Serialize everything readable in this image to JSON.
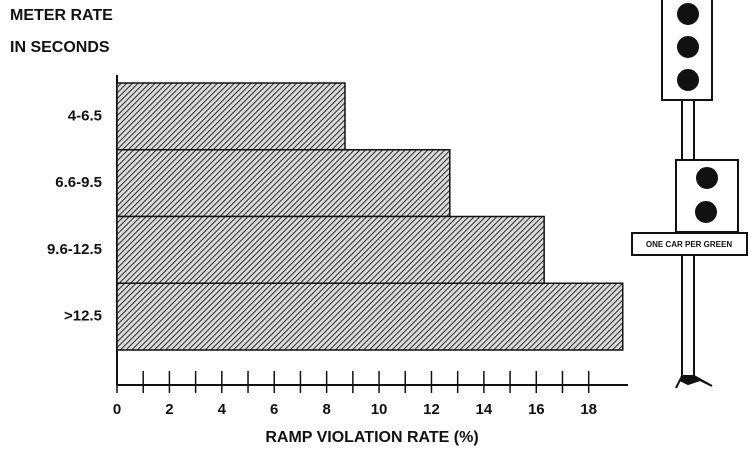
{
  "chart_data": {
    "type": "hbar",
    "title": [
      "METER RATE",
      "IN SECONDS"
    ],
    "x_label": "RAMP VIOLATION RATE (%)",
    "categories": [
      "4-6.5",
      "6.6-9.5",
      "9.6-12.5",
      ">12.5"
    ],
    "values": [
      8.7,
      12.7,
      16.3,
      19.3
    ],
    "color": "#555555",
    "xlim": [
      0,
      19.5
    ],
    "xticks": [
      0,
      2,
      4,
      6,
      8,
      10,
      12,
      14,
      16,
      18
    ],
    "annotation": "ONE CAR PER GREEN"
  }
}
